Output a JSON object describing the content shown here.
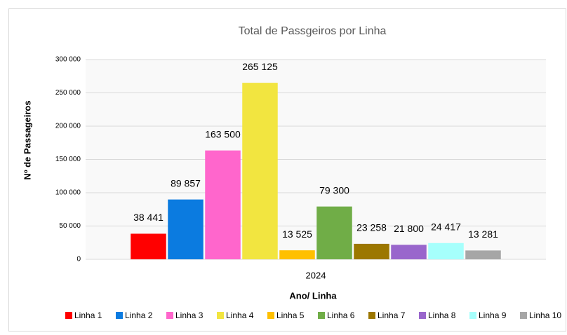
{
  "chart_data": {
    "type": "bar",
    "title": "Total de Passgeiros por Linha",
    "x_label": "Ano/ Linha",
    "y_label": "Nº de Passageiros",
    "categories": [
      "2024"
    ],
    "series": [
      {
        "name": "Linha 1",
        "color": "#ff0000",
        "values": [
          38441
        ],
        "value_labels": [
          "38 441"
        ]
      },
      {
        "name": "Linha 2",
        "color": "#0b7be0",
        "values": [
          89857
        ],
        "value_labels": [
          "89 857"
        ]
      },
      {
        "name": "Linha 3",
        "color": "#ff66cc",
        "values": [
          163500
        ],
        "value_labels": [
          "163 500"
        ]
      },
      {
        "name": "Linha 4",
        "color": "#f2e540",
        "values": [
          265125
        ],
        "value_labels": [
          "265 125"
        ]
      },
      {
        "name": "Linha 5",
        "color": "#ffc000",
        "values": [
          13525
        ],
        "value_labels": [
          "13 525"
        ]
      },
      {
        "name": "Linha 6",
        "color": "#70ad47",
        "values": [
          79300
        ],
        "value_labels": [
          "79 300"
        ]
      },
      {
        "name": "Linha 7",
        "color": "#9c7700",
        "values": [
          23258
        ],
        "value_labels": [
          "23 258"
        ]
      },
      {
        "name": "Linha 8",
        "color": "#9966cc",
        "values": [
          21800
        ],
        "value_labels": [
          "21 800"
        ]
      },
      {
        "name": "Linha 9",
        "color": "#a6fffc",
        "values": [
          24417
        ],
        "value_labels": [
          "24 417"
        ]
      },
      {
        "name": "Linha 10",
        "color": "#a6a6a6",
        "values": [
          13281
        ],
        "value_labels": [
          "13 281"
        ]
      }
    ],
    "ylim": [
      0,
      300000
    ],
    "yticks": [
      0,
      {
        "value": 50000,
        "label": "50 000"
      },
      {
        "value": 100000,
        "label": "100 000"
      },
      {
        "value": 150000,
        "label": "150 000"
      },
      {
        "value": 200000,
        "label": "200 000"
      },
      {
        "value": 250000,
        "label": "250 000"
      },
      {
        "value": 300000,
        "label": "300 000"
      }
    ],
    "grid": true,
    "legend": "bottom"
  }
}
